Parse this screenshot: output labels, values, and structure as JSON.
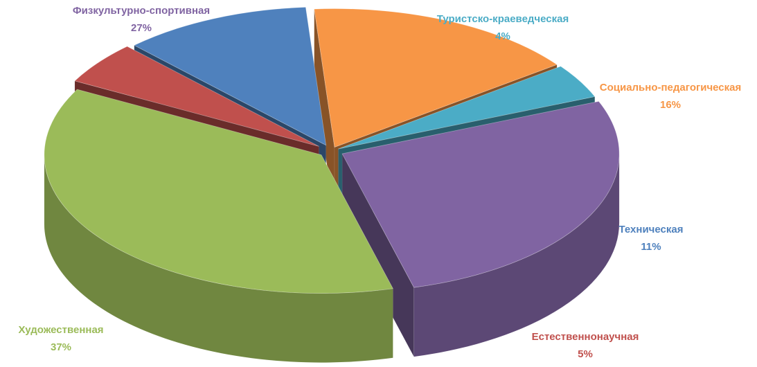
{
  "chart_data": {
    "type": "pie",
    "style": "3d-exploded",
    "title": "",
    "slices": [
      {
        "name": "Художественная",
        "value": 37,
        "percent_label": "37%",
        "color": "#9BBB59"
      },
      {
        "name": "Естественнонаучная",
        "value": 5,
        "percent_label": "5%",
        "color": "#C0504D"
      },
      {
        "name": "Техническая",
        "value": 11,
        "percent_label": "11%",
        "color": "#4F81BD"
      },
      {
        "name": "Социально-педагогическая",
        "value": 16,
        "percent_label": "16%",
        "color": "#F79646"
      },
      {
        "name": "Туристско-краеведческая",
        "value": 4,
        "percent_label": "4%",
        "color": "#4BACC6"
      },
      {
        "name": "Физкультурно-спортивная",
        "value": 27,
        "percent_label": "27%",
        "color": "#8064A2"
      }
    ],
    "legend": "none",
    "data_labels": "outside"
  }
}
